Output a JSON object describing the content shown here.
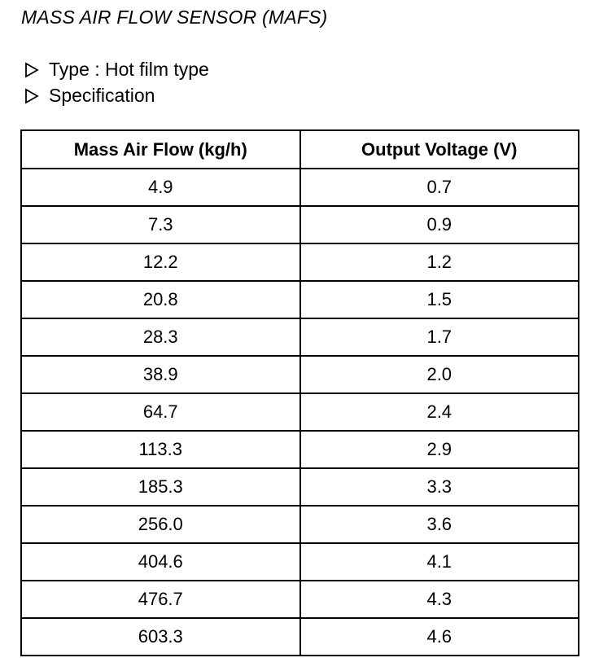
{
  "header": {
    "title": "MASS AIR FLOW SENSOR (MAFS)"
  },
  "bullets": [
    "Type : Hot film type",
    "Specification"
  ],
  "table": {
    "header": [
      "Mass Air Flow (kg/h)",
      "Output Voltage (V)"
    ],
    "rows": [
      [
        "4.9",
        "0.7"
      ],
      [
        "7.3",
        "0.9"
      ],
      [
        "12.2",
        "1.2"
      ],
      [
        "20.8",
        "1.5"
      ],
      [
        "28.3",
        "1.7"
      ],
      [
        "38.9",
        "2.0"
      ],
      [
        "64.7",
        "2.4"
      ],
      [
        "113.3",
        "2.9"
      ],
      [
        "185.3",
        "3.3"
      ],
      [
        "256.0",
        "3.6"
      ],
      [
        "404.6",
        "4.1"
      ],
      [
        "476.7",
        "4.3"
      ],
      [
        "603.3",
        "4.6"
      ]
    ]
  }
}
